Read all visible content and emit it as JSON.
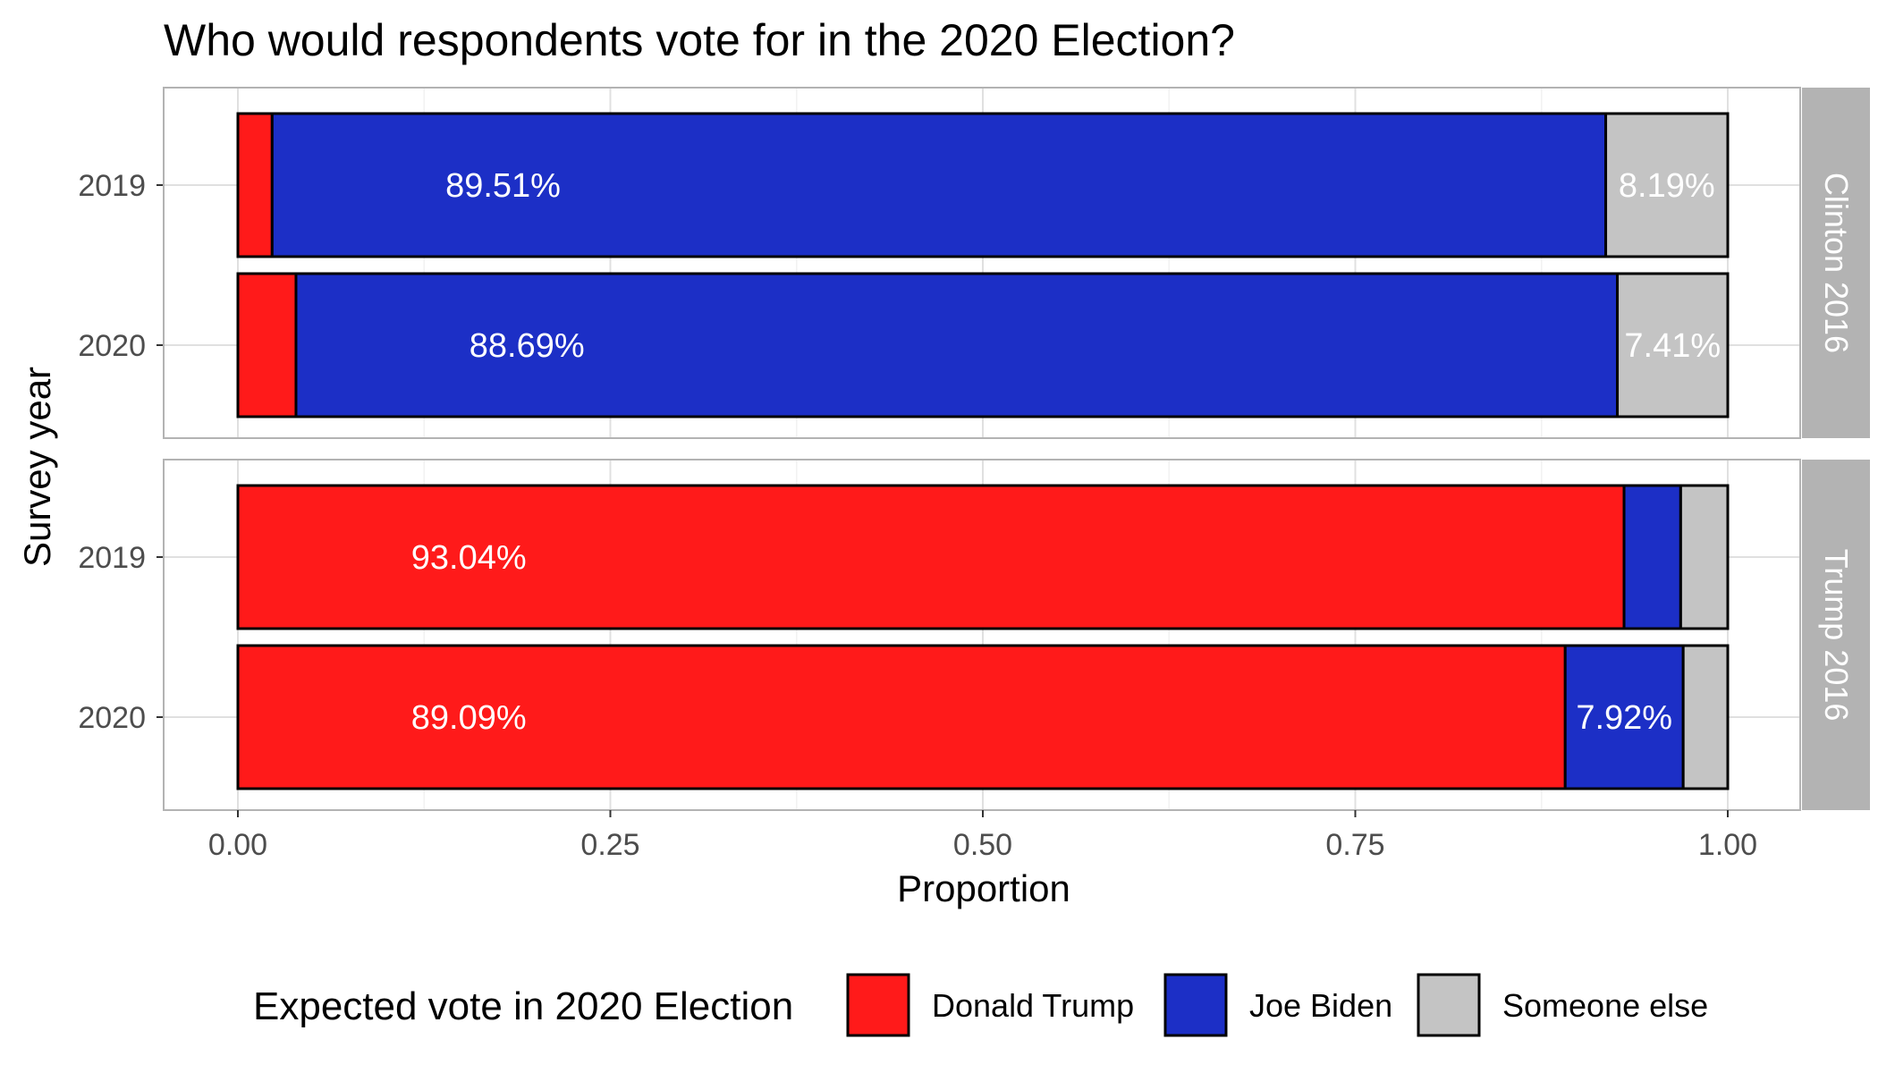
{
  "chart_data": {
    "type": "bar",
    "orientation": "horizontal",
    "stacked": true,
    "title": "Who would respondents vote for in the 2020 Election?",
    "xlabel": "Proportion",
    "ylabel": "Survey year",
    "xlim": [
      0,
      1
    ],
    "x_ticks": [
      "0.00",
      "0.25",
      "0.50",
      "0.75",
      "1.00"
    ],
    "grid": true,
    "legend": {
      "title": "Expected vote in 2020 Election",
      "position": "bottom",
      "entries": [
        "Donald Trump",
        "Joe Biden",
        "Someone else"
      ]
    },
    "colors": {
      "Donald Trump": "#ff1a1a",
      "Joe Biden": "#1c2fc6",
      "Someone else": "#c4c4c4"
    },
    "facets": [
      {
        "strip": "Clinton 2016",
        "rows": [
          {
            "year": "2019",
            "values": {
              "Donald Trump": 0.023,
              "Joe Biden": 0.8951,
              "Someone else": 0.0819
            },
            "labels": {
              "Joe Biden": "89.51%",
              "Someone else": "8.19%"
            }
          },
          {
            "year": "2020",
            "values": {
              "Donald Trump": 0.039,
              "Joe Biden": 0.8869,
              "Someone else": 0.0741
            },
            "labels": {
              "Joe Biden": "88.69%",
              "Someone else": "7.41%"
            }
          }
        ]
      },
      {
        "strip": "Trump 2016",
        "rows": [
          {
            "year": "2019",
            "values": {
              "Donald Trump": 0.9304,
              "Joe Biden": 0.038,
              "Someone else": 0.0316
            },
            "labels": {
              "Donald Trump": "93.04%"
            }
          },
          {
            "year": "2020",
            "values": {
              "Donald Trump": 0.8909,
              "Joe Biden": 0.0792,
              "Someone else": 0.0299
            },
            "labels": {
              "Donald Trump": "89.09%",
              "Joe Biden": "7.92%"
            }
          }
        ]
      }
    ]
  }
}
